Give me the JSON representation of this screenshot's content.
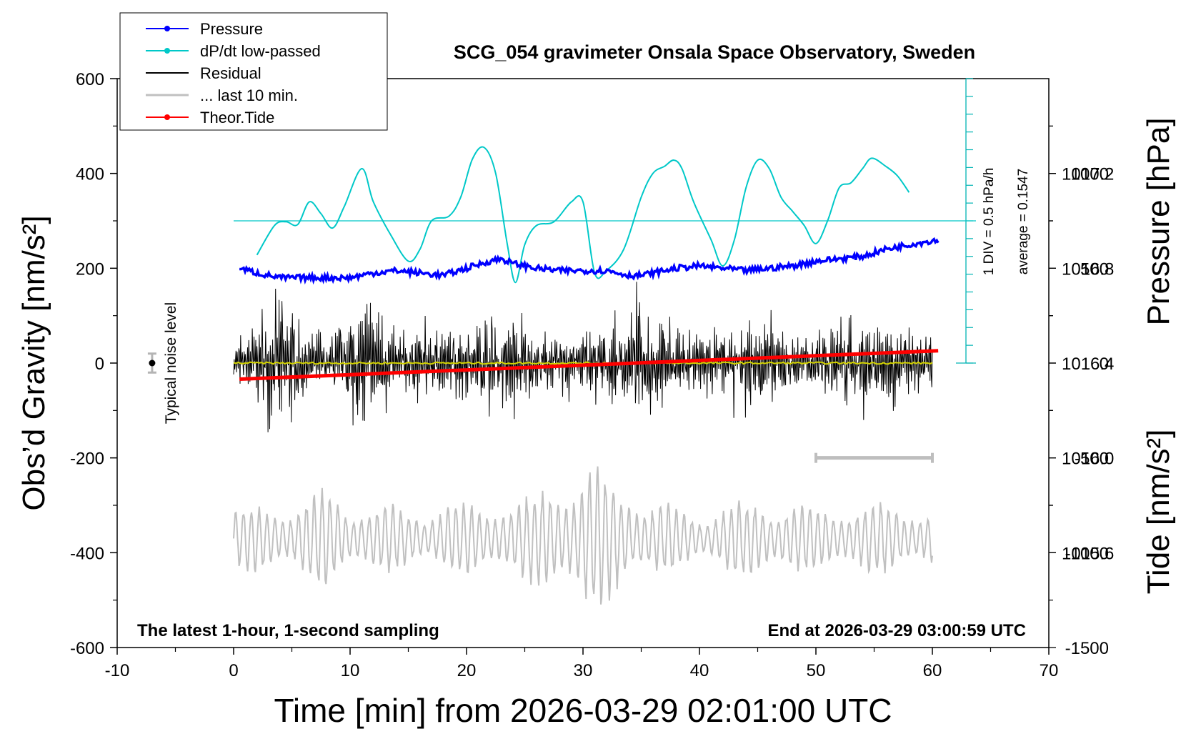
{
  "title": "SCG_054 gravimeter Onsala Space Observatory, Sweden",
  "xlabel": "Time [min] from 2026-03-29 02:01:00 UTC",
  "ylabel_left": "Obs’d Gravity [nm/s²]",
  "ylabel_right_pressure": "Pressure [hPa]",
  "ylabel_right_tide": "Tide [nm/s²]",
  "noise_label": "Typical noise level",
  "footer_left": "The latest 1-hour, 1-second sampling",
  "footer_right": "End at 2026-03-29 03:00:59 UTC",
  "dpdt_scale_label": "1 DIV = 0.5 hPa/h",
  "dpdt_average_label": "average = 0.1547",
  "legend": [
    {
      "label": "Pressure",
      "color": "#0000ff",
      "marker": "dot"
    },
    {
      "label": "dP/dt low-passed",
      "color": "#00c8c8",
      "marker": "dot"
    },
    {
      "label": "Residual",
      "color": "#000000",
      "marker": "none"
    },
    {
      "label": "... last 10 min.",
      "color": "#c0c0c0",
      "marker": "none"
    },
    {
      "label": "Theor.Tide",
      "color": "#ff0000",
      "marker": "dot"
    }
  ],
  "chart_data": {
    "type": "line",
    "xlim": [
      -10,
      70
    ],
    "x_ticks": [
      "-10",
      "0",
      "10",
      "20",
      "30",
      "40",
      "50",
      "60",
      "70"
    ],
    "ylim_left": [
      -600,
      600
    ],
    "y_ticks_left": [
      "-600",
      "-400",
      "-200",
      "0",
      "200",
      "400",
      "600"
    ],
    "pressure_axis": {
      "range": [
        1015.2,
        1017.6
      ],
      "ticks": [
        "1015.6",
        "1016.0",
        "1016.4",
        "1016.8",
        "1017.2"
      ]
    },
    "tide_axis": {
      "range": [
        -1500,
        1500
      ],
      "ticks": [
        "-1500",
        "-1000",
        "-500",
        "0",
        "500",
        "1000"
      ]
    },
    "series": [
      {
        "name": "Pressure",
        "axis": "pressure",
        "color": "#0000ff",
        "x": [
          0.5,
          2,
          4,
          6,
          8,
          10,
          12,
          14,
          16,
          18,
          20,
          22,
          23,
          24,
          26,
          28,
          30,
          32,
          34,
          35,
          36,
          38,
          40,
          42,
          44,
          46,
          48,
          50,
          52,
          54,
          56,
          58,
          60.5
        ],
        "y": [
          1016.8,
          1016.78,
          1016.76,
          1016.76,
          1016.76,
          1016.76,
          1016.78,
          1016.79,
          1016.78,
          1016.77,
          1016.8,
          1016.83,
          1016.84,
          1016.82,
          1016.8,
          1016.79,
          1016.79,
          1016.79,
          1016.77,
          1016.77,
          1016.78,
          1016.8,
          1016.81,
          1016.8,
          1016.79,
          1016.8,
          1016.81,
          1016.83,
          1016.84,
          1016.85,
          1016.88,
          1016.9,
          1016.92
        ]
      },
      {
        "name": "dP/dt low-passed",
        "axis": "gravity",
        "color": "#00c8c8",
        "x": [
          2,
          3.5,
          4.5,
          5.5,
          6.5,
          7.5,
          8.5,
          9.5,
          11,
          12,
          13.5,
          15,
          16,
          17,
          18.5,
          19.5,
          20.5,
          21.5,
          22.5,
          23.5,
          24.2,
          25,
          26,
          27.5,
          29,
          30,
          31,
          32,
          33.5,
          35,
          36,
          37,
          37.8,
          38.5,
          39.5,
          41,
          42,
          43,
          44,
          45,
          46,
          47,
          48,
          49,
          50,
          51,
          52,
          53,
          54,
          54.8,
          56,
          57,
          58
        ],
        "y": [
          228,
          290,
          298,
          292,
          340,
          315,
          285,
          330,
          410,
          340,
          270,
          215,
          240,
          300,
          310,
          350,
          430,
          455,
          400,
          250,
          170,
          250,
          290,
          298,
          340,
          340,
          190,
          195,
          240,
          350,
          400,
          415,
          428,
          410,
          340,
          260,
          205,
          260,
          370,
          428,
          410,
          350,
          320,
          290,
          252,
          300,
          370,
          380,
          410,
          432,
          415,
          395,
          360
        ]
      },
      {
        "name": "Residual",
        "axis": "gravity",
        "color": "#000000",
        "x_range": [
          0,
          60
        ],
        "envelope_x": [
          0,
          2,
          4,
          6,
          8,
          10,
          12,
          14,
          16,
          18,
          20,
          22,
          24,
          26,
          28,
          30,
          32,
          34,
          35,
          36,
          38,
          40,
          42,
          44,
          46,
          48,
          50,
          52,
          54,
          56,
          58,
          60
        ],
        "envelope_y": [
          50,
          120,
          190,
          110,
          90,
          150,
          160,
          80,
          100,
          100,
          120,
          140,
          150,
          70,
          100,
          90,
          100,
          130,
          210,
          120,
          90,
          100,
          90,
          140,
          120,
          80,
          100,
          110,
          150,
          120,
          80,
          70
        ]
      },
      {
        "name": "... last 10 min.",
        "axis": "gravity",
        "color": "#c0c0c0",
        "x_range": [
          0,
          60
        ],
        "baseline": -370,
        "envelope_x": [
          0,
          5,
          8,
          10,
          15,
          20,
          25,
          28,
          31,
          34,
          36,
          40,
          45,
          50,
          55,
          60
        ],
        "envelope_y": [
          60,
          70,
          100,
          70,
          60,
          70,
          80,
          120,
          140,
          110,
          70,
          50,
          80,
          60,
          70,
          60
        ]
      },
      {
        "name": "Theor.Tide",
        "axis": "tide",
        "color": "#ff0000",
        "x": [
          0.5,
          60.5
        ],
        "y": [
          -85,
          65
        ]
      }
    ],
    "noise_bar": {
      "x": -7,
      "center": 0,
      "half_height": 20
    },
    "last10_bracket": {
      "x": [
        50,
        60
      ],
      "y": -200
    }
  }
}
